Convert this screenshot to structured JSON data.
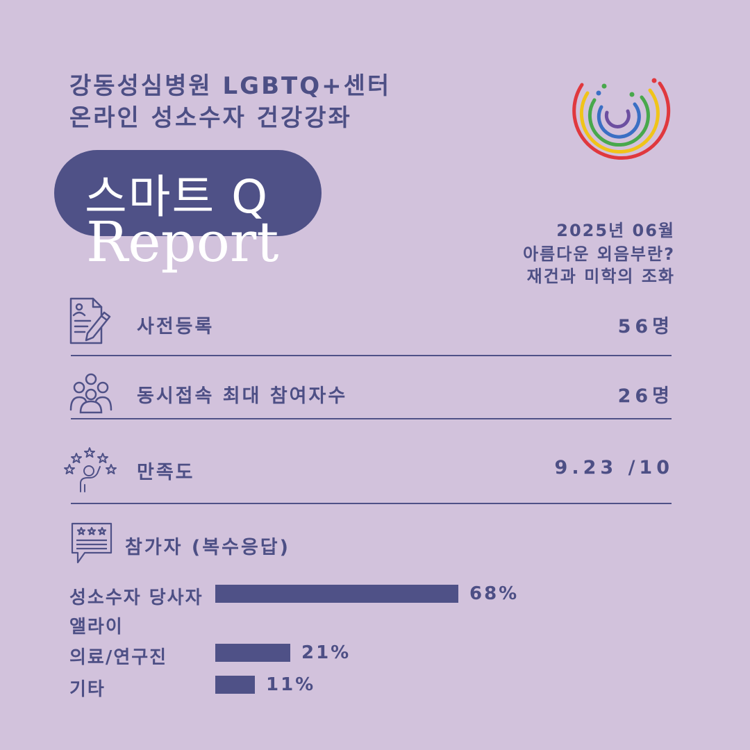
{
  "header": {
    "line1": "강동성심병원 LGBTQ+센터",
    "line2": "온라인 성소수자 건강강좌"
  },
  "badge": {
    "title": "스마트 Q",
    "subtitle": "Report"
  },
  "info": {
    "date": "2025년 06월",
    "topic_line1": "아름다운 외음부란?",
    "topic_line2": "재건과 미학의 조화"
  },
  "stats": [
    {
      "label": "사전등록",
      "value": "56명",
      "icon": "registration-form-icon"
    },
    {
      "label": "동시접속 최대 참여자수",
      "value": "26명",
      "icon": "people-group-icon"
    },
    {
      "label": "만족도",
      "value": "9.23 /10",
      "icon": "satisfaction-stars-icon"
    }
  ],
  "participants": {
    "title": "참가자 (복수응답)",
    "icon": "review-speech-bubble-icon",
    "rows": [
      {
        "label": "성소수자 당사자",
        "value": "68%",
        "fraction": 0.68
      },
      {
        "label": "앨라이",
        "value": "",
        "fraction": 0
      },
      {
        "label": "의료/연구진",
        "value": "21%",
        "fraction": 0.21
      },
      {
        "label": "기타",
        "value": "11%",
        "fraction": 0.11
      }
    ]
  },
  "colors": {
    "background": "#d2c2dc",
    "primary": "#4f5187",
    "text": "#4d4f85",
    "logo_red": "#e0383e",
    "logo_yellow": "#f0c419",
    "logo_green": "#48a84c",
    "logo_blue": "#3a6fc4",
    "logo_purple": "#6c4fa0"
  }
}
